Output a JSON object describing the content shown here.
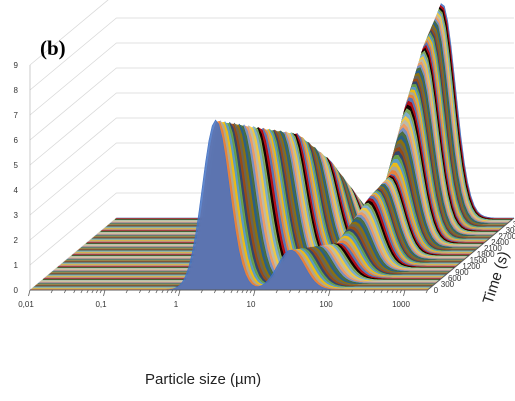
{
  "panel_label": "(b)",
  "chart_data": {
    "type": "line",
    "subtype": "3d-waterfall",
    "title": "",
    "xlabel": "Particle size (µm)",
    "ylabel": "Time (s)",
    "zlabel": "",
    "x_scale": "log",
    "x_ticks": [
      "0,01",
      "0,1",
      "1",
      "10",
      "100",
      "1000"
    ],
    "xlim": [
      0.01,
      2000
    ],
    "y_ticks": [
      "0",
      "300",
      "600",
      "900",
      "1200",
      "1500",
      "1800",
      "2100",
      "2400",
      "2700",
      "3000",
      "3300",
      "3600"
    ],
    "ylim": [
      0,
      3600
    ],
    "z_ticks": [
      "0",
      "1",
      "2",
      "3",
      "4",
      "5",
      "6",
      "7",
      "8",
      "9"
    ],
    "zlim": [
      0,
      9
    ],
    "grid": true,
    "series_count": 121,
    "time_step_s": 30,
    "series": [
      {
        "time": 0,
        "peaks": [
          {
            "x": 3,
            "height": 6.8
          },
          {
            "x": 30,
            "height": 1.6
          }
        ]
      },
      {
        "time": 600,
        "peaks": [
          {
            "x": 8,
            "height": 6.0
          },
          {
            "x": 90,
            "height": 1.4
          }
        ]
      },
      {
        "time": 1200,
        "peaks": [
          {
            "x": 15,
            "height": 5.3
          },
          {
            "x": 150,
            "height": 2.8
          }
        ]
      },
      {
        "time": 1800,
        "peaks": [
          {
            "x": 25,
            "height": 3.8
          },
          {
            "x": 180,
            "height": 3.2
          }
        ]
      },
      {
        "time": 2400,
        "peaks": [
          {
            "x": 30,
            "height": 2.2
          },
          {
            "x": 200,
            "height": 5.8
          }
        ]
      },
      {
        "time": 3000,
        "peaks": [
          {
            "x": 30,
            "height": 0.8
          },
          {
            "x": 210,
            "height": 7.5
          }
        ]
      },
      {
        "time": 3600,
        "peaks": [
          {
            "x": 30,
            "height": 0.3
          },
          {
            "x": 220,
            "height": 8.6
          }
        ]
      }
    ],
    "colors": [
      "#4472c4",
      "#ed7d31",
      "#a5a5a5",
      "#ffc000",
      "#5b9bd5",
      "#70ad47",
      "#264478",
      "#9e480e",
      "#636363",
      "#997300",
      "#255e91",
      "#43682b",
      "#698ed0",
      "#f1975a",
      "#b7b7b7",
      "#ffcd33",
      "#7cafdd",
      "#8cc168",
      "#000000",
      "#c00000"
    ]
  }
}
